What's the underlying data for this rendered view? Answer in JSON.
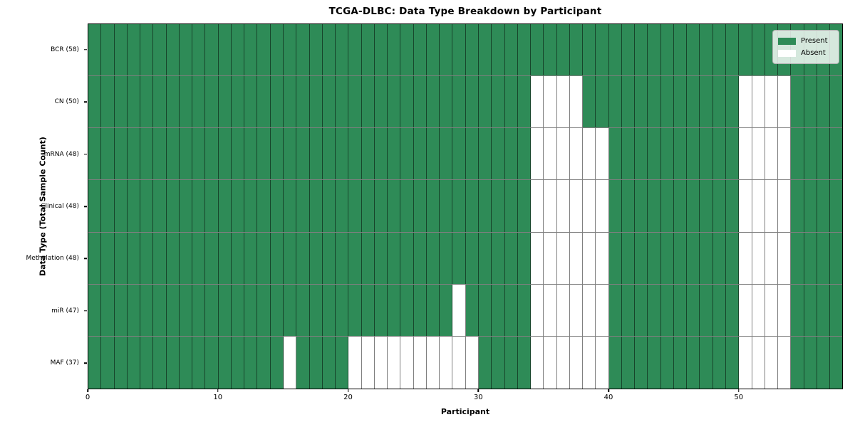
{
  "title": "TCGA-DLBC: Data Type Breakdown by Participant",
  "chart_data": {
    "type": "heatmap",
    "title": "TCGA-DLBC: Data Type Breakdown by Participant",
    "xlabel": "Participant",
    "ylabel": "Data Type (Total Sample Count)",
    "n_participants": 58,
    "x_ticks": [
      0,
      10,
      20,
      30,
      40,
      50
    ],
    "xlim": [
      0,
      58
    ],
    "grid": "cell-borders",
    "legend_position": "upper right",
    "legend": [
      {
        "label": "Present",
        "color": "#2e8b57"
      },
      {
        "label": "Absent",
        "color": "#ffffff"
      }
    ],
    "colors": {
      "present": "#2e8b57",
      "absent": "#ffffff",
      "cell_border": "rgba(0,0,0,0.5)"
    },
    "rows": [
      {
        "label": "BCR (58)",
        "data_type": "BCR",
        "present_count": 58,
        "absent_participants": []
      },
      {
        "label": "CN (50)",
        "data_type": "CN",
        "present_count": 50,
        "absent_participants": [
          34,
          35,
          36,
          37,
          50,
          51,
          52,
          53
        ]
      },
      {
        "label": "mRNA (48)",
        "data_type": "mRNA",
        "present_count": 48,
        "absent_participants": [
          34,
          35,
          36,
          37,
          38,
          39,
          50,
          51,
          52,
          53
        ]
      },
      {
        "label": "Clinical (48)",
        "data_type": "Clinical",
        "present_count": 48,
        "absent_participants": [
          34,
          35,
          36,
          37,
          38,
          39,
          50,
          51,
          52,
          53
        ]
      },
      {
        "label": "Methylation (48)",
        "data_type": "Methylation",
        "present_count": 48,
        "absent_participants": [
          34,
          35,
          36,
          37,
          38,
          39,
          50,
          51,
          52,
          53
        ]
      },
      {
        "label": "miR (47)",
        "data_type": "miR",
        "present_count": 47,
        "absent_participants": [
          28,
          34,
          35,
          36,
          37,
          38,
          39,
          50,
          51,
          52,
          53
        ]
      },
      {
        "label": "MAF (37)",
        "data_type": "MAF",
        "present_count": 37,
        "absent_participants": [
          15,
          20,
          21,
          22,
          23,
          24,
          25,
          26,
          27,
          28,
          29,
          34,
          35,
          36,
          37,
          38,
          39,
          50,
          51,
          52,
          53
        ]
      }
    ]
  }
}
